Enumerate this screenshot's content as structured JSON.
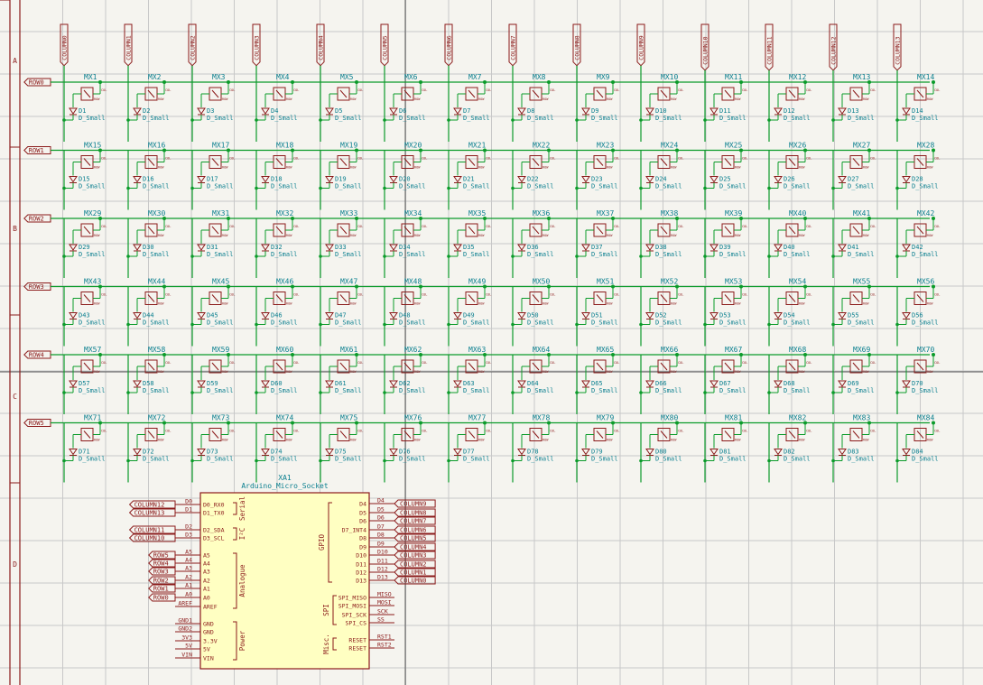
{
  "sheet": {
    "zone_letters": [
      "A",
      "B",
      "C",
      "D"
    ]
  },
  "colors": {
    "background": "#f5f4ef",
    "grid": "#c8c8c8",
    "border": "#8b1a1a",
    "wire": "#0b9b2a",
    "junction": "#0b9b2a",
    "symbol": "#8b1a1a",
    "symbol_fill": "#ffffc2",
    "ref_text": "#0a7f8f",
    "pin_text": "#8b1a1a"
  },
  "matrix": {
    "columns": [
      "COLUMN0",
      "COLUMN1",
      "COLUMN2",
      "COLUMN3",
      "COLUMN4",
      "COLUMN5",
      "COLUMN6",
      "COLUMN7",
      "COLUMN8",
      "COLUMN9",
      "COLUMN10",
      "COLUMN11",
      "COLUMN12",
      "COLUMN13"
    ],
    "rows": [
      "ROW0",
      "ROW1",
      "ROW2",
      "ROW3",
      "ROW4",
      "ROW5"
    ],
    "row_counts": [
      14,
      14,
      14,
      14,
      14,
      14
    ],
    "switch_prefix": "MX",
    "diode_prefix": "D",
    "diode_value": "D_Small",
    "row_pin_label": "ROW",
    "col_pin_label": "COL"
  },
  "mcu": {
    "ref": "XA1",
    "value": "Arduino_Micro_Socket",
    "groups": {
      "serial": "Serial",
      "i2c": "I²C",
      "analogue": "Analogue",
      "power": "Power",
      "gpio": "GPIO",
      "spi": "SPI",
      "misc": "Misc."
    },
    "left_pins": [
      {
        "net": "COLUMN12",
        "num": "D0",
        "name": "D0_RX0"
      },
      {
        "net": "COLUMN13",
        "num": "D1",
        "name": "D1_TX0"
      },
      {
        "net": "COLUMN11",
        "num": "D2",
        "name": "D2_SDA"
      },
      {
        "net": "COLUMN10",
        "num": "D3",
        "name": "D3_SCL"
      },
      {
        "net": "ROW5",
        "num": "A5",
        "name": "A5"
      },
      {
        "net": "ROW4",
        "num": "A4",
        "name": "A4"
      },
      {
        "net": "ROW3",
        "num": "A3",
        "name": "A3"
      },
      {
        "net": "ROW2",
        "num": "A2",
        "name": "A2"
      },
      {
        "net": "ROW1",
        "num": "A1",
        "name": "A1"
      },
      {
        "net": "ROW0",
        "num": "A0",
        "name": "A0"
      },
      {
        "net": "",
        "num": "AREF",
        "name": "AREF"
      },
      {
        "net": "",
        "num": "GND1",
        "name": "GND"
      },
      {
        "net": "",
        "num": "GND2",
        "name": "GND"
      },
      {
        "net": "",
        "num": "3V3",
        "name": "3.3V"
      },
      {
        "net": "",
        "num": "5V",
        "name": "5V"
      },
      {
        "net": "",
        "num": "VIN",
        "name": "VIN"
      }
    ],
    "right_pins": [
      {
        "net": "COLUMN9",
        "num": "D4",
        "name": "D4"
      },
      {
        "net": "COLUMN8",
        "num": "D5",
        "name": "D5"
      },
      {
        "net": "COLUMN7",
        "num": "D6",
        "name": "D6"
      },
      {
        "net": "COLUMN6",
        "num": "D7",
        "name": "D7_INT4"
      },
      {
        "net": "COLUMN5",
        "num": "D8",
        "name": "D8"
      },
      {
        "net": "COLUMN4",
        "num": "D9",
        "name": "D9"
      },
      {
        "net": "COLUMN3",
        "num": "D10",
        "name": "D10"
      },
      {
        "net": "COLUMN2",
        "num": "D11",
        "name": "D11"
      },
      {
        "net": "COLUMN1",
        "num": "D12",
        "name": "D12"
      },
      {
        "net": "COLUMN0",
        "num": "D13",
        "name": "D13"
      },
      {
        "net": "",
        "num": "MISO",
        "name": "SPI_MISO"
      },
      {
        "net": "",
        "num": "MOSI",
        "name": "SPI_MOSI"
      },
      {
        "net": "",
        "num": "SCK",
        "name": "SPI_SCK"
      },
      {
        "net": "",
        "num": "SS",
        "name": "SPI_CS"
      },
      {
        "net": "",
        "num": "RST1",
        "name": "RESET"
      },
      {
        "net": "",
        "num": "RST2",
        "name": "RESET"
      }
    ]
  }
}
